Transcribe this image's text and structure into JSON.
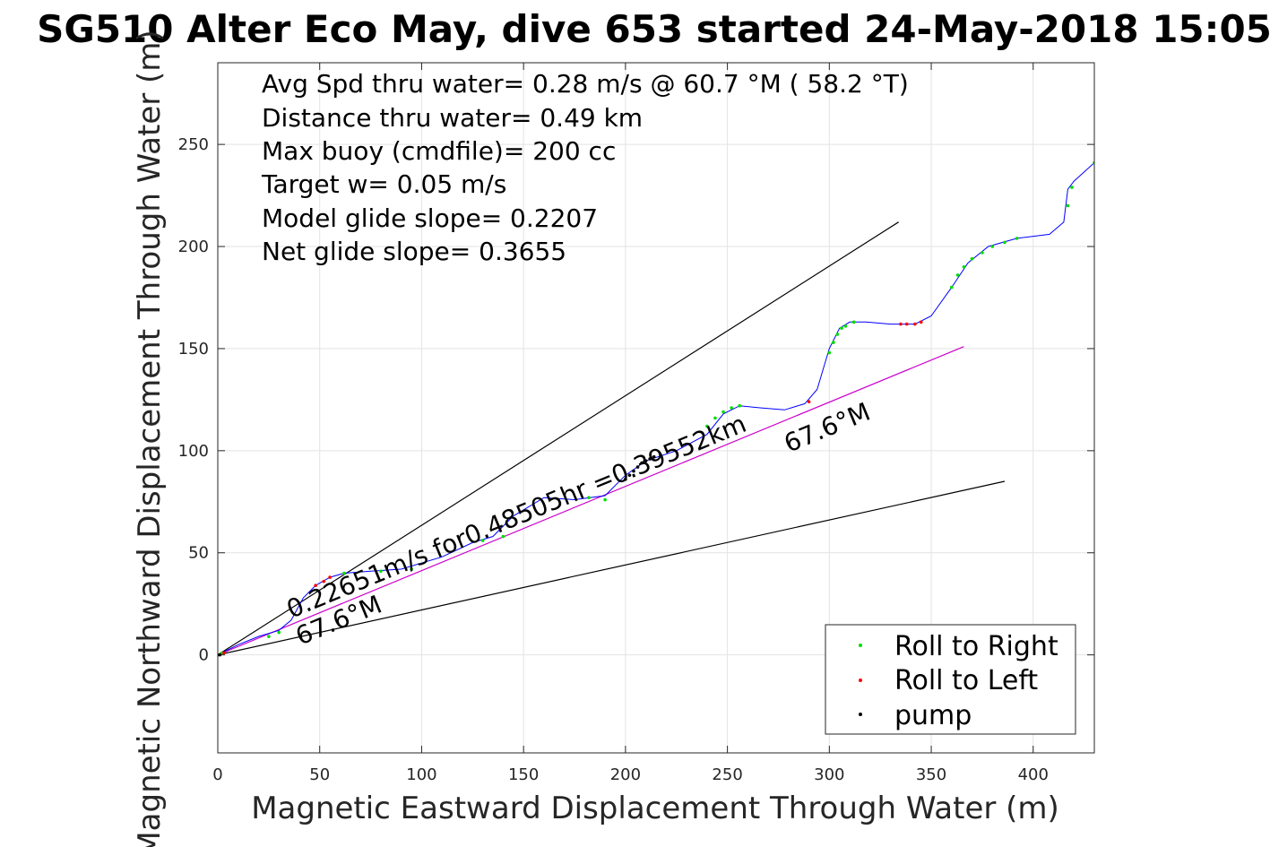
{
  "chart_data": {
    "type": "line",
    "title": "SG510 Alter Eco May, dive 653 started 24-May-2018 15:05",
    "xlabel": "Magnetic Eastward Displacement Through Water (m)",
    "ylabel": "Magnetic Northward Displacement Through Water (m)",
    "xlim": [
      0,
      430
    ],
    "ylim": [
      -48,
      290
    ],
    "xticks": [
      0,
      50,
      100,
      150,
      200,
      250,
      300,
      350,
      400
    ],
    "yticks": [
      0,
      50,
      100,
      150,
      200,
      250
    ],
    "grid": true,
    "annotations": [
      "Avg Spd thru water=  0.28 m/s @  60.7 °M ( 58.2 °T)",
      "Distance thru water=  0.49 km",
      "Max buoy (cmdfile)= 200 cc",
      "Target w= 0.05 m/s",
      "Model glide slope= 0.2207",
      "Net glide slope= 0.3655"
    ],
    "vector_label": "0.22651m/s for0.48505hr =0.39552km",
    "heading_label_1": "67.6°M",
    "heading_label_2": "67.6°M",
    "track": {
      "name": "track",
      "color": "#0000ff",
      "x": [
        0,
        10,
        20,
        30,
        36,
        42,
        48,
        55,
        62,
        75,
        90,
        110,
        125,
        135,
        145,
        160,
        175,
        190,
        200,
        210,
        225,
        240,
        248,
        256,
        266,
        278,
        288,
        294,
        300,
        305,
        310,
        318,
        330,
        342,
        350,
        360,
        368,
        378,
        392,
        408,
        415,
        417,
        420,
        430
      ],
      "y": [
        0,
        5,
        9,
        12,
        17,
        28,
        34,
        38,
        40,
        41,
        42,
        48,
        55,
        58,
        68,
        77,
        76,
        78,
        88,
        95,
        100,
        108,
        118,
        122,
        121,
        120,
        123,
        130,
        150,
        160,
        163,
        163,
        162,
        162,
        166,
        180,
        192,
        200,
        204,
        206,
        212,
        228,
        232,
        241
      ]
    },
    "envelope_lines": [
      {
        "name": "upper",
        "color": "#000000",
        "x": [
          0,
          334
        ],
        "y": [
          0,
          212
        ]
      },
      {
        "name": "lower",
        "color": "#000000",
        "x": [
          0,
          386
        ],
        "y": [
          0,
          85
        ]
      },
      {
        "name": "mean",
        "color": "#cc00cc",
        "x": [
          0,
          366
        ],
        "y": [
          0,
          151
        ]
      }
    ],
    "series": [
      {
        "name": "Roll to Right",
        "color": "#00dd00",
        "x": [
          2,
          25,
          30,
          62,
          80,
          95,
          130,
          140,
          182,
          190,
          240,
          244,
          248,
          252,
          256,
          300,
          302,
          304,
          306,
          308,
          312,
          360,
          363,
          366,
          370,
          375,
          380,
          386,
          392,
          417,
          419,
          430
        ],
        "y": [
          1,
          9,
          11,
          40,
          41,
          42,
          56,
          58,
          77,
          76,
          112,
          116,
          119,
          121,
          122,
          148,
          153,
          157,
          160,
          161,
          163,
          180,
          186,
          190,
          194,
          197,
          200,
          202,
          204,
          220,
          229,
          241
        ]
      },
      {
        "name": "Roll to Left",
        "color": "#ff0000",
        "x": [
          3,
          48,
          52,
          55,
          290,
          335,
          338,
          342,
          345
        ],
        "y": [
          1,
          34,
          36,
          38,
          124,
          162,
          162,
          162,
          163
        ]
      },
      {
        "name": "pump",
        "color": "#000000",
        "x": [
          0,
          1,
          200,
          202,
          204,
          206,
          208,
          210,
          212,
          214
        ],
        "y": [
          0,
          0,
          86,
          88,
          90,
          92,
          94,
          95,
          96,
          97
        ]
      }
    ],
    "legend": {
      "placement": "bottom-right",
      "entries": [
        "Roll to Right",
        "Roll to Left",
        "pump"
      ]
    }
  }
}
